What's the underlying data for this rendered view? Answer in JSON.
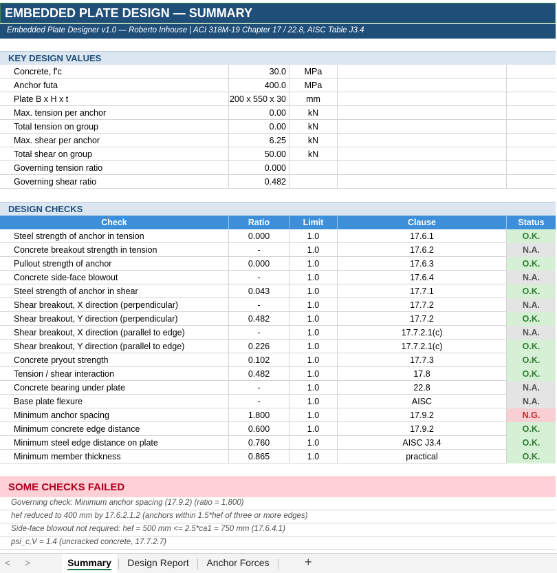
{
  "title": "EMBEDDED PLATE DESIGN — SUMMARY",
  "subtitle": "Embedded Plate Designer v1.0 — Roberto Inhouse   |   ACI 318M-19 Chapter 17 / 22.8, AISC Table J3.4",
  "key_values": {
    "heading": "KEY DESIGN VALUES",
    "rows": [
      {
        "label": "Concrete, f'c",
        "value": "30.0",
        "unit": "MPa"
      },
      {
        "label": "Anchor futa",
        "value": "400.0",
        "unit": "MPa"
      },
      {
        "label": "Plate B x H x t",
        "value": "200 x 550 x 30",
        "unit": "mm"
      },
      {
        "label": "Max. tension per anchor",
        "value": "0.00",
        "unit": "kN"
      },
      {
        "label": "Total tension on group",
        "value": "0.00",
        "unit": "kN"
      },
      {
        "label": "Max. shear per anchor",
        "value": "6.25",
        "unit": "kN"
      },
      {
        "label": "Total shear on group",
        "value": "50.00",
        "unit": "kN"
      },
      {
        "label": "Governing tension ratio",
        "value": "0.000",
        "unit": ""
      },
      {
        "label": "Governing shear ratio",
        "value": "0.482",
        "unit": ""
      }
    ]
  },
  "checks": {
    "heading": "DESIGN CHECKS",
    "columns": {
      "check": "Check",
      "ratio": "Ratio",
      "limit": "Limit",
      "clause": "Clause",
      "status": "Status"
    },
    "rows": [
      {
        "check": "Steel strength of anchor in tension",
        "ratio": "0.000",
        "limit": "1.0",
        "clause": "17.6.1",
        "status": "O.K."
      },
      {
        "check": "Concrete breakout strength in tension",
        "ratio": "-",
        "limit": "1.0",
        "clause": "17.6.2",
        "status": "N.A."
      },
      {
        "check": "Pullout strength of anchor",
        "ratio": "0.000",
        "limit": "1.0",
        "clause": "17.6.3",
        "status": "O.K."
      },
      {
        "check": "Concrete side-face blowout",
        "ratio": "-",
        "limit": "1.0",
        "clause": "17.6.4",
        "status": "N.A."
      },
      {
        "check": "Steel strength of anchor in shear",
        "ratio": "0.043",
        "limit": "1.0",
        "clause": "17.7.1",
        "status": "O.K."
      },
      {
        "check": "Shear breakout, X direction (perpendicular)",
        "ratio": "-",
        "limit": "1.0",
        "clause": "17.7.2",
        "status": "N.A."
      },
      {
        "check": "Shear breakout, Y direction (perpendicular)",
        "ratio": "0.482",
        "limit": "1.0",
        "clause": "17.7.2",
        "status": "O.K."
      },
      {
        "check": "Shear breakout, X direction (parallel to edge)",
        "ratio": "-",
        "limit": "1.0",
        "clause": "17.7.2.1(c)",
        "status": "N.A."
      },
      {
        "check": "Shear breakout, Y direction (parallel to edge)",
        "ratio": "0.226",
        "limit": "1.0",
        "clause": "17.7.2.1(c)",
        "status": "O.K."
      },
      {
        "check": "Concrete pryout strength",
        "ratio": "0.102",
        "limit": "1.0",
        "clause": "17.7.3",
        "status": "O.K."
      },
      {
        "check": "Tension / shear interaction",
        "ratio": "0.482",
        "limit": "1.0",
        "clause": "17.8",
        "status": "O.K."
      },
      {
        "check": "Concrete bearing under plate",
        "ratio": "-",
        "limit": "1.0",
        "clause": "22.8",
        "status": "N.A."
      },
      {
        "check": "Base plate flexure",
        "ratio": "-",
        "limit": "1.0",
        "clause": "AISC",
        "status": "N.A."
      },
      {
        "check": "Minimum anchor spacing",
        "ratio": "1.800",
        "limit": "1.0",
        "clause": "17.9.2",
        "status": "N.G."
      },
      {
        "check": "Minimum concrete edge distance",
        "ratio": "0.600",
        "limit": "1.0",
        "clause": "17.9.2",
        "status": "O.K."
      },
      {
        "check": "Minimum steel edge distance on plate",
        "ratio": "0.760",
        "limit": "1.0",
        "clause": "AISC J3.4",
        "status": "O.K."
      },
      {
        "check": "Minimum member thickness",
        "ratio": "0.865",
        "limit": "1.0",
        "clause": "practical",
        "status": "O.K."
      }
    ]
  },
  "result": {
    "banner": "SOME CHECKS FAILED",
    "notes": [
      "Governing check: Minimum anchor spacing (17.9.2)  (ratio = 1.800)",
      "hef reduced to 400 mm by 17.6.2.1.2 (anchors within 1.5*hef of three or more edges)",
      "Side-face blowout not required: hef = 500 mm <= 2.5*ca1 = 750 mm (17.6.4.1)",
      "psi_c,V = 1.4 (uncracked concrete, 17.7.2.7)"
    ]
  },
  "tabs": {
    "nav_prev": "<",
    "nav_next": ">",
    "items": [
      "Summary",
      "Design Report",
      "Anchor Forces"
    ],
    "active": 0,
    "add": "+"
  },
  "colors": {
    "ok": "#2e7d32",
    "na": "#555555",
    "ng": "#c62828",
    "header": "#1f4e79",
    "table_header": "#3c8fd8"
  }
}
